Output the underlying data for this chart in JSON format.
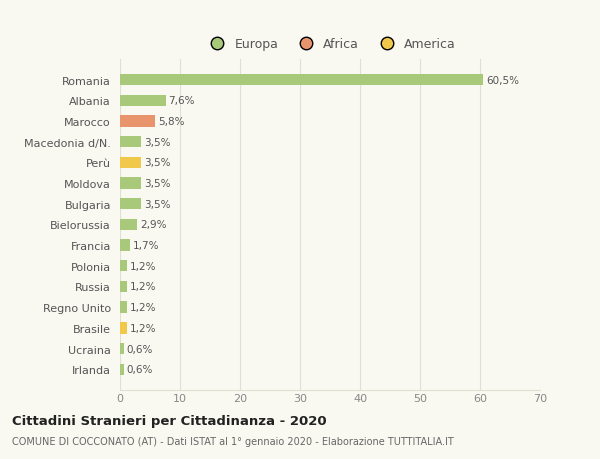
{
  "categories": [
    "Romania",
    "Albania",
    "Marocco",
    "Macedonia d/N.",
    "Perù",
    "Moldova",
    "Bulgaria",
    "Bielorussia",
    "Francia",
    "Polonia",
    "Russia",
    "Regno Unito",
    "Brasile",
    "Ucraina",
    "Irlanda"
  ],
  "values": [
    60.5,
    7.6,
    5.8,
    3.5,
    3.5,
    3.5,
    3.5,
    2.9,
    1.7,
    1.2,
    1.2,
    1.2,
    1.2,
    0.6,
    0.6
  ],
  "labels": [
    "60,5%",
    "7,6%",
    "5,8%",
    "3,5%",
    "3,5%",
    "3,5%",
    "3,5%",
    "2,9%",
    "1,7%",
    "1,2%",
    "1,2%",
    "1,2%",
    "1,2%",
    "0,6%",
    "0,6%"
  ],
  "colors": [
    "#a8c87a",
    "#a8c87a",
    "#e8956d",
    "#a8c87a",
    "#f0c84a",
    "#a8c87a",
    "#a8c87a",
    "#a8c87a",
    "#a8c87a",
    "#a8c87a",
    "#a8c87a",
    "#a8c87a",
    "#f0c84a",
    "#a8c87a",
    "#a8c87a"
  ],
  "legend": [
    {
      "label": "Europa",
      "color": "#a8c87a"
    },
    {
      "label": "Africa",
      "color": "#e8956d"
    },
    {
      "label": "America",
      "color": "#f0c84a"
    }
  ],
  "xlim": [
    0,
    70
  ],
  "xticks": [
    0,
    10,
    20,
    30,
    40,
    50,
    60,
    70
  ],
  "title": "Cittadini Stranieri per Cittadinanza - 2020",
  "subtitle": "COMUNE DI COCCONATO (AT) - Dati ISTAT al 1° gennaio 2020 - Elaborazione TUTTITALIA.IT",
  "background_color": "#f9f9f2",
  "grid_color": "#e0e0d0",
  "bar_height": 0.55
}
